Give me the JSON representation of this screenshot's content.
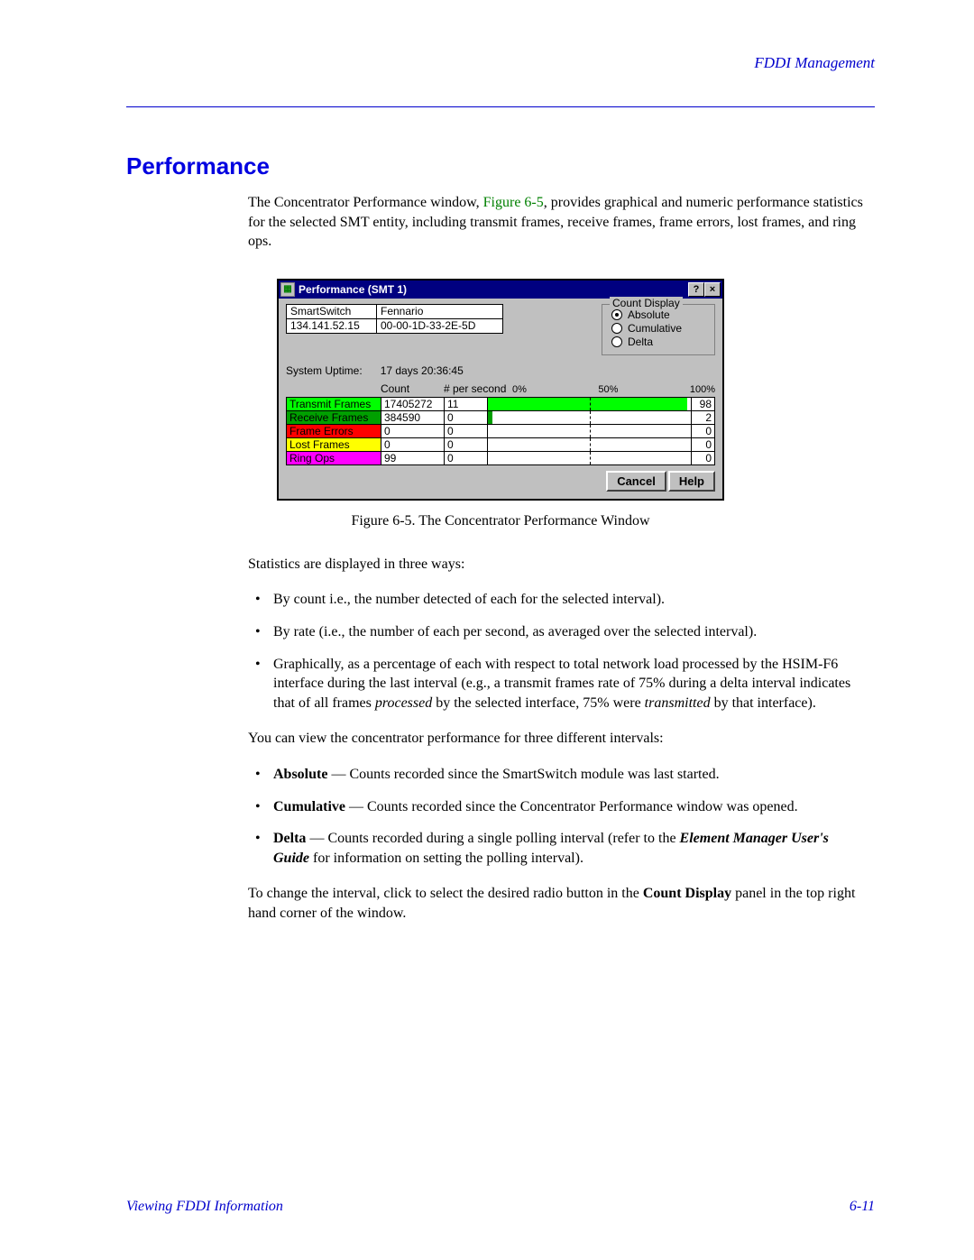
{
  "header": {
    "right": "FDDI Management"
  },
  "section_title": "Performance",
  "intro": {
    "pre": "The Concentrator Performance window, ",
    "fig_link": "Figure 6-5",
    "post": ", provides graphical and numeric performance statistics for the selected SMT entity, including transmit frames, receive frames, frame errors, lost frames, and ring ops."
  },
  "perf_window": {
    "title": "Performance (SMT 1)",
    "help_btn": "?",
    "close_btn": "×",
    "info": {
      "r1c1": "SmartSwitch",
      "r1c2": "Fennario",
      "r2c1": "134.141.52.15",
      "r2c2": "00-00-1D-33-2E-5D"
    },
    "count_display": {
      "legend": "Count Display",
      "options": [
        "Absolute",
        "Cumulative",
        "Delta"
      ],
      "selected": 0
    },
    "uptime_label": "System Uptime:",
    "uptime_value": "17 days 20:36:45",
    "hdr_count": "Count",
    "hdr_pps": "# per second",
    "scale": {
      "left": "0%",
      "mid": "50%",
      "right": "100%"
    },
    "rows": [
      {
        "name": "Transmit Frames",
        "bg": "#00ff00",
        "count": "17405272",
        "pps": "11",
        "pct_fill": 98,
        "fill_color": "#00ff00",
        "pct": "98"
      },
      {
        "name": "Receive Frames",
        "bg": "#00a000",
        "count": "384590",
        "pps": "0",
        "pct_fill": 2,
        "fill_color": "#00a000",
        "pct": "2"
      },
      {
        "name": "Frame Errors",
        "bg": "#ff0000",
        "count": "0",
        "pps": "0",
        "pct_fill": 0,
        "fill_color": "#ff0000",
        "pct": "0"
      },
      {
        "name": "Lost Frames",
        "bg": "#ffff00",
        "count": "0",
        "pps": "0",
        "pct_fill": 0,
        "fill_color": "#ffff00",
        "pct": "0"
      },
      {
        "name": "Ring Ops",
        "bg": "#ff00ff",
        "count": "99",
        "pps": "0",
        "pct_fill": 0,
        "fill_color": "#ff00ff",
        "pct": "0"
      }
    ],
    "buttons": {
      "cancel": "Cancel",
      "help": "Help"
    }
  },
  "fig_caption": "Figure 6-5.  The Concentrator Performance Window",
  "stats_intro": "Statistics are displayed in three ways:",
  "stats_bullets": [
    "By count i.e., the number detected of each for the selected interval).",
    "By rate (i.e., the number of each per second, as averaged over the selected interval)."
  ],
  "stats_bullet3": {
    "pre": "Graphically, as a percentage of each with respect to total network load processed by the HSIM-F6 interface during the last interval (e.g., a transmit frames rate of 75% during a delta interval indicates that of all frames ",
    "em1": "processed",
    "mid": " by the selected interface, 75% were ",
    "em2": "transmitted",
    "post": " by that interface)."
  },
  "intervals_intro": "You can view the concentrator performance for three different intervals:",
  "interval_bullets": [
    {
      "term": "Absolute",
      "text": " — Counts recorded since the SmartSwitch module was last started."
    },
    {
      "term": "Cumulative",
      "text": " — Counts recorded since the Concentrator Performance window was opened."
    }
  ],
  "interval_bullet3": {
    "term": "Delta",
    "pre": " — Counts recorded during a single polling interval (refer to the ",
    "ref": "Element Manager User's Guide",
    "post": " for information on setting the polling interval)."
  },
  "closing": {
    "pre": "To change the interval, click to select the desired radio button in the ",
    "bold": "Count Display",
    "post": " panel in the top right hand corner of the window."
  },
  "footer": {
    "left": "Viewing FDDI Information",
    "right": "6-11"
  }
}
